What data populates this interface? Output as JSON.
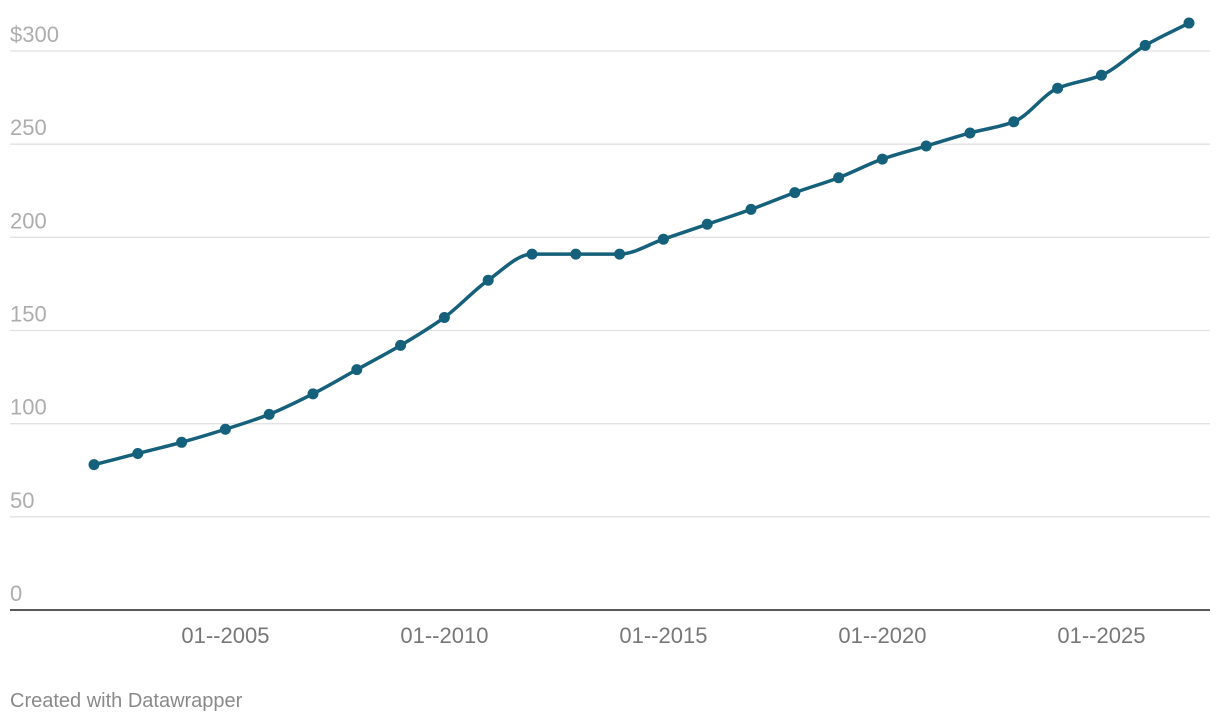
{
  "footer": {
    "credit": "Created with Datawrapper"
  },
  "colors": {
    "series": "#15607a",
    "grid": "#e2e2e2",
    "ytick": "#adadad",
    "xtick": "#777777",
    "baseline": "#222222"
  },
  "chart_data": {
    "type": "line",
    "title": "",
    "xlabel": "",
    "ylabel": "",
    "ylim": [
      0,
      300
    ],
    "xlim": [
      "2001-07",
      "2027-01"
    ],
    "grid": true,
    "legend": "none",
    "y_ticks": [
      {
        "value": 0,
        "label": "0"
      },
      {
        "value": 50,
        "label": "50"
      },
      {
        "value": 100,
        "label": "100"
      },
      {
        "value": 150,
        "label": "150"
      },
      {
        "value": 200,
        "label": "200"
      },
      {
        "value": 250,
        "label": "250"
      },
      {
        "value": 300,
        "label": "$300"
      }
    ],
    "x_ticks": [
      {
        "value": 2005,
        "label": "01--2005"
      },
      {
        "value": 2010,
        "label": "01--2010"
      },
      {
        "value": 2015,
        "label": "01--2015"
      },
      {
        "value": 2020,
        "label": "01--2020"
      },
      {
        "value": 2025,
        "label": "01--2025"
      }
    ],
    "series": [
      {
        "color": "#15607a",
        "x": [
          2002,
          2003,
          2004,
          2005,
          2006,
          2007,
          2008,
          2009,
          2010,
          2011,
          2012,
          2013,
          2014,
          2015,
          2016,
          2017,
          2018,
          2019,
          2020,
          2021,
          2022,
          2023,
          2024,
          2025,
          2026,
          2027
        ],
        "values": [
          78,
          84,
          90,
          97,
          105,
          116,
          129,
          142,
          157,
          177,
          191,
          191,
          191,
          199,
          207,
          215,
          224,
          232,
          242,
          249,
          256,
          262,
          280,
          287,
          303,
          315
        ]
      }
    ]
  }
}
